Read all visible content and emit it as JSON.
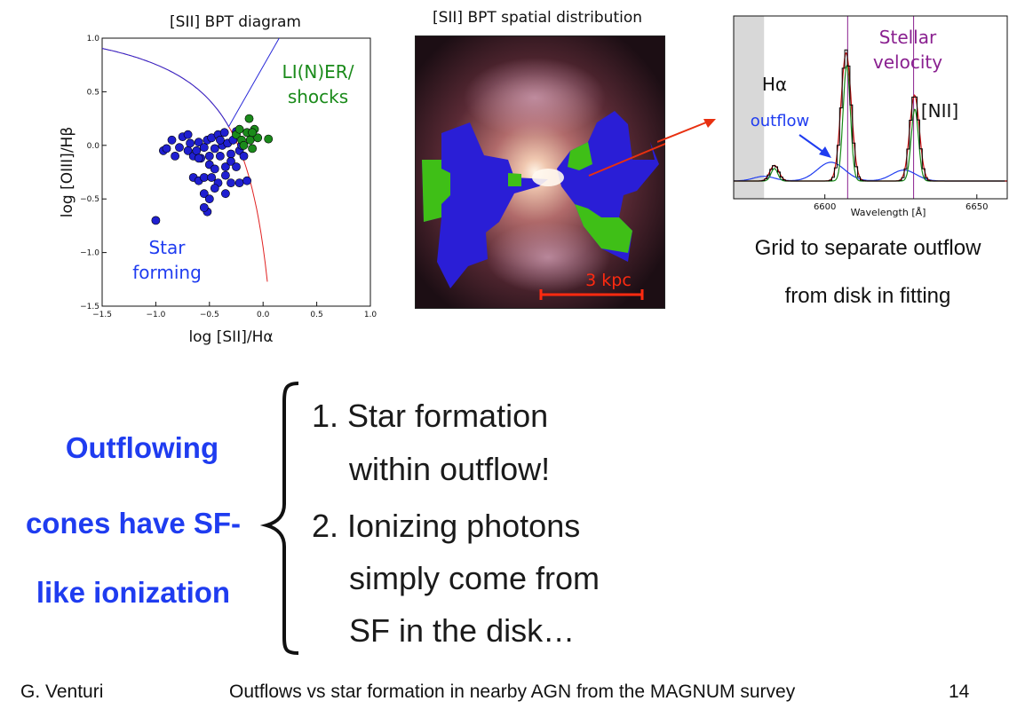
{
  "bpt_plot": {
    "title": "[SII] BPT diagram",
    "xlabel": "log [SII]/Hα",
    "ylabel": "log [OIII]/Hβ",
    "region_labels": {
      "sf_line1": "Star",
      "sf_line2": "forming",
      "liner_line1": "LI(N)ER/",
      "liner_line2": "shocks"
    },
    "colors": {
      "sf": "#1f1fd0",
      "liner": "#1a8a1a",
      "demarcation_blue": "#2a2ad8",
      "demarcation_red": "#e02020"
    }
  },
  "map_panel": {
    "title": "[SII] BPT spatial distribution",
    "scale_label": "3 kpc",
    "colors": {
      "sf_region": "#2a1ed6",
      "liner_region": "#3fbf17",
      "scale": "#ff2a10"
    }
  },
  "spectrum_panel": {
    "xlabel": "Wavelength [Å]",
    "labels": {
      "ha": "Hα",
      "stellar1": "Stellar",
      "stellar2": "velocity",
      "nii": "[NII]",
      "outflow": "outflow"
    },
    "colors": {
      "stellar": "#8a2090",
      "outflow": "#1f3cf0",
      "data": "#000000",
      "fit": "#cc1010",
      "disk": "#1a8a1a"
    }
  },
  "caption": {
    "line1": "Grid to separate outflow",
    "line2": "from disk in fitting"
  },
  "conclusion": {
    "line1": "Outflowing",
    "line2": "cones have SF-",
    "line3": "like ionization"
  },
  "list": {
    "item1_line1": "1. Star formation",
    "item1_line2": "within outflow!",
    "item2_line1": "2. Ionizing photons",
    "item2_line2": "simply come from",
    "item2_line3": "SF in the disk…"
  },
  "footer": {
    "author": "G. Venturi",
    "title": "Outflows vs star formation in nearby AGN from the MAGNUM survey",
    "page": "14"
  },
  "chart_data": [
    {
      "type": "scatter",
      "title": "[SII] BPT diagram",
      "xlabel": "log [SII]/Hα",
      "ylabel": "log [OIII]/Hβ",
      "xlim": [
        -1.5,
        1.0
      ],
      "ylim": [
        -1.5,
        1.0
      ],
      "x_ticks": [
        "−1.5",
        "−1.0",
        "−0.5",
        "0.0",
        "0.5",
        "1.0"
      ],
      "y_ticks": [
        "1.0",
        "0.5",
        "0.0",
        "−0.5",
        "−1.0",
        "−1.5"
      ],
      "x_tick_values": [
        -1.5,
        -1.0,
        -0.5,
        0.0,
        0.5,
        1.0
      ],
      "y_tick_values": [
        1.0,
        0.5,
        0.0,
        -0.5,
        -1.0,
        -1.5
      ],
      "series": [
        {
          "name": "Star forming",
          "color": "#1f1fd0",
          "points": [
            [
              -0.93,
              -0.05
            ],
            [
              -0.9,
              -0.03
            ],
            [
              -0.82,
              -0.1
            ],
            [
              -0.78,
              -0.02
            ],
            [
              -0.75,
              0.08
            ],
            [
              -0.7,
              -0.05
            ],
            [
              -0.68,
              0.02
            ],
            [
              -0.65,
              -0.1
            ],
            [
              -0.62,
              -0.05
            ],
            [
              -0.6,
              0.03
            ],
            [
              -0.58,
              -0.12
            ],
            [
              -0.55,
              -0.02
            ],
            [
              -0.52,
              0.05
            ],
            [
              -0.5,
              -0.1
            ],
            [
              -0.48,
              0.07
            ],
            [
              -0.45,
              -0.03
            ],
            [
              -0.42,
              0.1
            ],
            [
              -0.4,
              -0.1
            ],
            [
              -0.38,
              0.0
            ],
            [
              -0.36,
              0.12
            ],
            [
              -0.33,
              0.02
            ],
            [
              -0.3,
              -0.08
            ],
            [
              -0.28,
              0.05
            ],
            [
              -0.25,
              0.13
            ],
            [
              -0.22,
              -0.05
            ],
            [
              -0.2,
              0.0
            ],
            [
              -0.18,
              -0.1
            ],
            [
              -0.5,
              -0.18
            ],
            [
              -0.45,
              -0.22
            ],
            [
              -0.35,
              -0.2
            ],
            [
              -0.3,
              -0.15
            ],
            [
              -0.25,
              -0.2
            ],
            [
              -0.65,
              -0.3
            ],
            [
              -0.6,
              -0.33
            ],
            [
              -0.55,
              -0.3
            ],
            [
              -0.48,
              -0.3
            ],
            [
              -0.42,
              -0.35
            ],
            [
              -0.35,
              -0.28
            ],
            [
              -0.3,
              -0.35
            ],
            [
              -0.22,
              -0.35
            ],
            [
              -0.15,
              -0.33
            ],
            [
              -0.55,
              -0.45
            ],
            [
              -0.5,
              -0.5
            ],
            [
              -0.45,
              -0.4
            ],
            [
              -0.35,
              -0.45
            ],
            [
              -0.52,
              -0.62
            ],
            [
              -0.55,
              -0.58
            ],
            [
              -1.0,
              -0.7
            ],
            [
              -0.6,
              -0.12
            ],
            [
              -0.7,
              0.1
            ],
            [
              -0.85,
              0.05
            ],
            [
              -0.4,
              0.05
            ]
          ]
        },
        {
          "name": "LI(N)ER/shocks",
          "color": "#1a8a1a",
          "points": [
            [
              -0.25,
              0.1
            ],
            [
              -0.2,
              0.05
            ],
            [
              -0.15,
              0.12
            ],
            [
              -0.12,
              0.05
            ],
            [
              -0.1,
              -0.03
            ],
            [
              -0.05,
              0.07
            ],
            [
              -0.13,
              0.25
            ],
            [
              -0.22,
              0.15
            ],
            [
              0.05,
              0.06
            ],
            [
              -0.08,
              0.15
            ],
            [
              -0.18,
              0.0
            ],
            [
              -0.1,
              0.12
            ]
          ]
        }
      ]
    },
    {
      "type": "line",
      "title": "",
      "xlabel": "Wavelength [Å]",
      "xlim": [
        6570,
        6660
      ],
      "x_ticks": [
        "6600",
        "6650"
      ],
      "x_tick_values": [
        6600,
        6650
      ],
      "ylim": [
        0,
        1
      ],
      "lines": [
        {
          "name": "data",
          "color": "#000000",
          "peaks": [
            {
              "center": 6583.4,
              "amp": 0.1,
              "sigma": 1.4
            },
            {
              "center": 6607.0,
              "amp": 0.84,
              "sigma": 1.6
            },
            {
              "center": 6629.5,
              "amp": 0.56,
              "sigma": 1.5
            }
          ],
          "baseline": 0.0
        },
        {
          "name": "fit",
          "color": "#cc1010",
          "peaks": [
            {
              "center": 6583.4,
              "amp": 0.1,
              "sigma": 1.5
            },
            {
              "center": 6607.0,
              "amp": 0.82,
              "sigma": 1.7
            },
            {
              "center": 6629.5,
              "amp": 0.55,
              "sigma": 1.6
            }
          ],
          "baseline": 0.0
        },
        {
          "name": "disk",
          "color": "#1a8a1a",
          "peaks": [
            {
              "center": 6583.4,
              "amp": 0.08,
              "sigma": 1.1
            },
            {
              "center": 6607.2,
              "amp": 0.74,
              "sigma": 1.2
            },
            {
              "center": 6629.6,
              "amp": 0.46,
              "sigma": 1.2
            }
          ],
          "baseline": 0.0
        },
        {
          "name": "outflow",
          "color": "#1f3cf0",
          "peaks": [
            {
              "center": 6580.0,
              "amp": 0.03,
              "sigma": 3.5
            },
            {
              "center": 6602.0,
              "amp": 0.12,
              "sigma": 4.5
            },
            {
              "center": 6626.0,
              "amp": 0.07,
              "sigma": 4.0
            }
          ],
          "baseline": 0.0
        }
      ],
      "vlines": [
        {
          "x": 6607.5,
          "color": "#8a2090"
        },
        {
          "x": 6629.2,
          "color": "#8a2090"
        }
      ],
      "shaded_region": {
        "x": [
          6570,
          6580
        ],
        "color": "#d8d8d8"
      }
    }
  ]
}
